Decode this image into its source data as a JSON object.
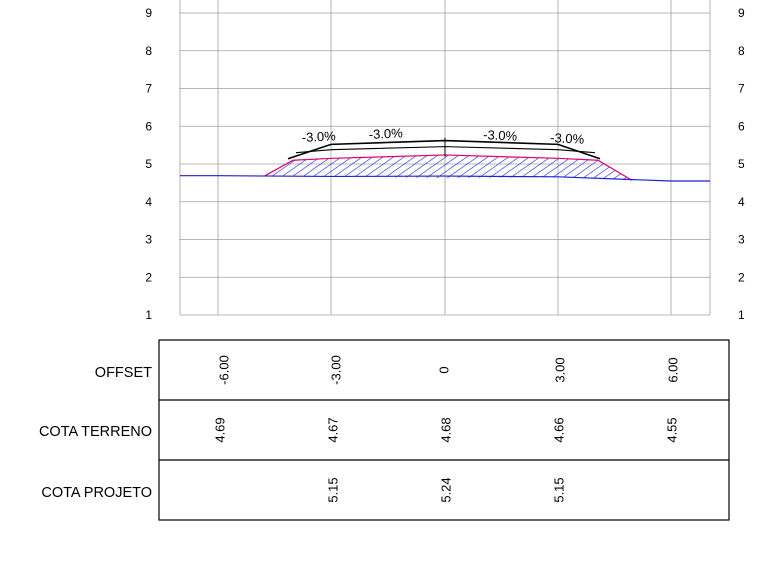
{
  "y_ticks": [
    "9",
    "8",
    "7",
    "6",
    "5",
    "4",
    "3",
    "2",
    "1"
  ],
  "slope_labels": [
    "-3.0%",
    "-3.0%",
    "-3.0%",
    "-3.0%"
  ],
  "table": {
    "rows": [
      {
        "label": "OFFSET",
        "values": [
          "-6.00",
          "-3.00",
          "0",
          "3.00",
          "6.00"
        ]
      },
      {
        "label": "COTA TERRENO",
        "values": [
          "4.69",
          "4.67",
          "4.68",
          "4.66",
          "4.55"
        ]
      },
      {
        "label": "COTA PROJETO",
        "values": [
          "",
          "5.15",
          "5.24",
          "5.15",
          ""
        ]
      }
    ]
  },
  "chart_data": {
    "type": "line",
    "x": [
      -6,
      -3,
      0,
      3,
      6
    ],
    "series": [
      {
        "values": [
          4.69,
          4.67,
          4.68,
          4.66,
          4.55
        ]
      },
      {
        "values": [
          null,
          5.15,
          5.24,
          5.15,
          null
        ]
      }
    ],
    "ylim": [
      1,
      9
    ],
    "grid": true
  },
  "colors": {
    "grid": "#a0a0a0",
    "terrain": "#1f1fd8",
    "hatch": "#1f1fd8",
    "subgrade": "#e0006e",
    "pavement": "#000000"
  }
}
